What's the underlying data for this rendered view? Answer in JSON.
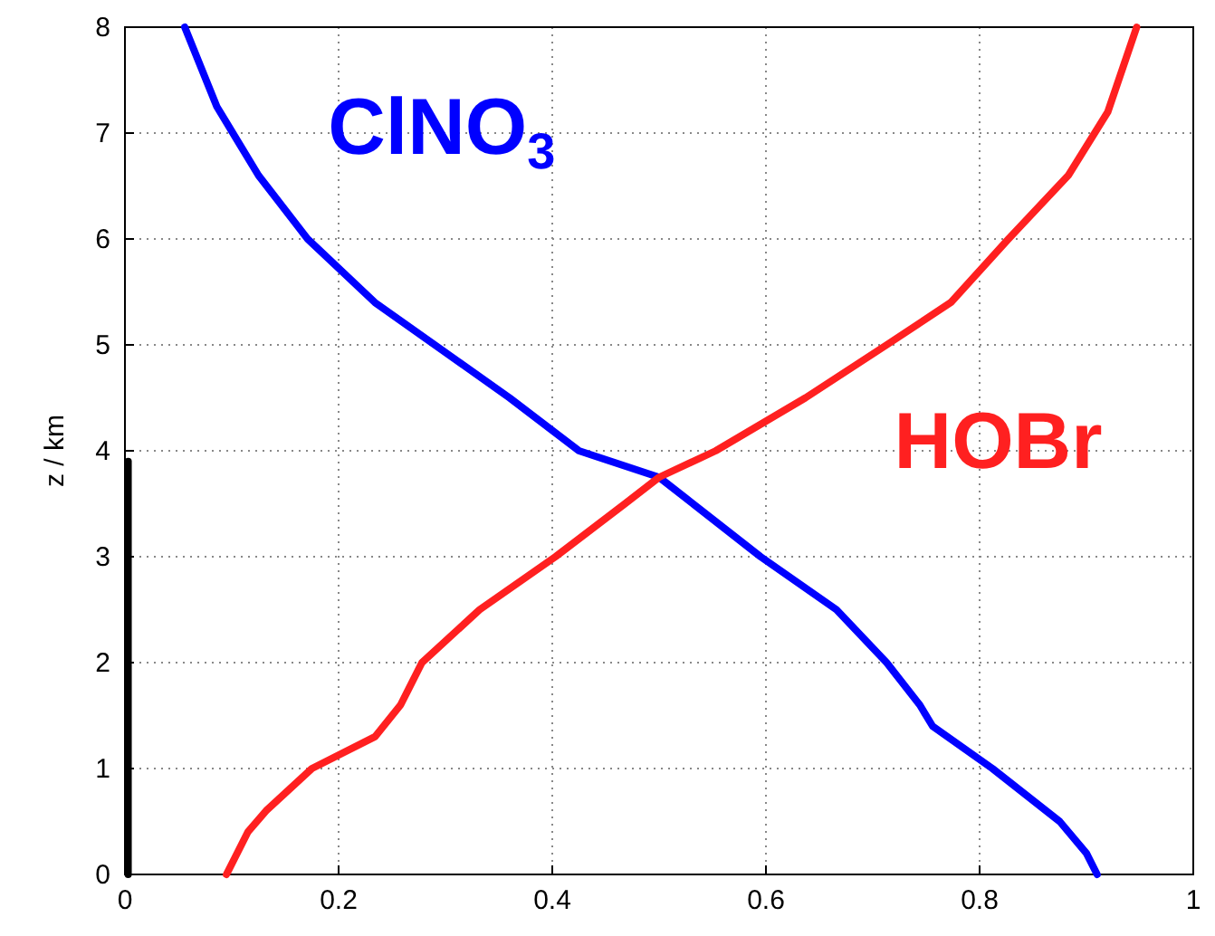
{
  "chart_data": {
    "type": "line",
    "ylabel": "z / km",
    "xlim": [
      0,
      1
    ],
    "xticks": [
      0,
      0.2,
      0.4,
      0.6,
      0.8,
      1
    ],
    "ylim": [
      0,
      8
    ],
    "yticks": [
      0,
      1,
      2,
      3,
      4,
      5,
      6,
      7,
      8
    ],
    "grid": true,
    "line_style": "solid",
    "marker": "none",
    "series": [
      {
        "name": "ClNO$_{3}$",
        "color": "#0000ff",
        "x": [
          0.91,
          0.9,
          0.875,
          0.812,
          0.756,
          0.744,
          0.713,
          0.666,
          0.595,
          0.5,
          0.425,
          0.36,
          0.29,
          0.234,
          0.171,
          0.125,
          0.086,
          0.056
        ],
        "values": [
          0,
          0.2,
          0.5,
          1,
          1.4,
          1.6,
          2,
          2.5,
          3,
          3.75,
          4,
          4.5,
          5,
          5.4,
          6,
          6.6,
          7.25,
          8
        ]
      },
      {
        "name": "HOBr",
        "color": "#ff2020",
        "x": [
          0.095,
          0.115,
          0.132,
          0.175,
          0.234,
          0.258,
          0.278,
          0.332,
          0.403,
          0.468,
          0.5,
          0.553,
          0.637,
          0.713,
          0.773,
          0.827,
          0.883,
          0.92,
          0.947
        ],
        "values": [
          0,
          0.4,
          0.6,
          1,
          1.3,
          1.6,
          2,
          2.5,
          3,
          3.5,
          3.75,
          4,
          4.5,
          5,
          5.4,
          6,
          6.6,
          7.2,
          8
        ]
      },
      {
        "color": "#000000",
        "x": [
          0.003,
          0.003
        ],
        "values": [
          0,
          3.9
        ]
      }
    ]
  }
}
